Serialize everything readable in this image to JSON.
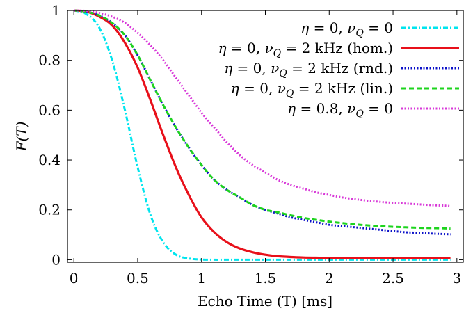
{
  "chart_data": {
    "type": "line",
    "xlabel": "Echo Time (T) [ms]",
    "ylabel": "F(T)",
    "xlim": [
      -0.05,
      3.05
    ],
    "ylim": [
      -0.01,
      1.0
    ],
    "xticks": [
      0,
      0.5,
      1,
      1.5,
      2,
      2.5,
      3
    ],
    "xtick_labels": [
      "0",
      "0.5",
      "1",
      "1.5",
      "2",
      "2.5",
      "3"
    ],
    "yticks": [
      0,
      0.2,
      0.4,
      0.6,
      0.8,
      1
    ],
    "ytick_labels": [
      "0",
      "0.2",
      "0.4",
      "0.6",
      "0.8",
      "1"
    ],
    "grid": false,
    "legend_position": "top-right",
    "x": [
      0,
      0.1,
      0.2,
      0.3,
      0.4,
      0.5,
      0.6,
      0.7,
      0.8,
      0.9,
      1.0,
      1.1,
      1.2,
      1.3,
      1.4,
      1.5,
      1.6,
      1.7,
      1.8,
      1.9,
      2.0,
      2.1,
      2.2,
      2.3,
      2.4,
      2.5,
      2.6,
      2.7,
      2.8,
      2.9,
      2.95
    ],
    "series": [
      {
        "name_parts": [
          "η = 0, ",
          "ν",
          "Q",
          " = 0"
        ],
        "color": "#00e5ee",
        "dash": "dashdot",
        "values": [
          1.0,
          0.985,
          0.93,
          0.8,
          0.6,
          0.37,
          0.18,
          0.07,
          0.02,
          0.005,
          0.001,
          0,
          0,
          0,
          0,
          0,
          0,
          0,
          0,
          0,
          0,
          0,
          0,
          0,
          0,
          0,
          0,
          0,
          0,
          0,
          0
        ]
      },
      {
        "name_parts": [
          "η = 0, ",
          "ν",
          "Q",
          " = 2 kHz (hom.)"
        ],
        "color": "#e8101a",
        "dash": "solid",
        "values": [
          1.0,
          0.995,
          0.975,
          0.94,
          0.87,
          0.77,
          0.64,
          0.5,
          0.37,
          0.26,
          0.17,
          0.11,
          0.07,
          0.045,
          0.03,
          0.02,
          0.014,
          0.011,
          0.009,
          0.008,
          0.007,
          0.007,
          0.006,
          0.006,
          0.006,
          0.006,
          0.006,
          0.006,
          0.006,
          0.006,
          0.006
        ]
      },
      {
        "name_parts": [
          "η = 0, ",
          "ν",
          "Q",
          " = 2 kHz (rnd.)"
        ],
        "color": "#0a10c8",
        "dash": "dotted",
        "values": [
          1.0,
          0.995,
          0.98,
          0.95,
          0.9,
          0.82,
          0.72,
          0.62,
          0.53,
          0.45,
          0.38,
          0.32,
          0.28,
          0.25,
          0.22,
          0.2,
          0.185,
          0.17,
          0.16,
          0.15,
          0.14,
          0.135,
          0.13,
          0.125,
          0.12,
          0.115,
          0.11,
          0.108,
          0.105,
          0.103,
          0.102
        ]
      },
      {
        "name_parts": [
          "η = 0, ",
          "ν",
          "Q",
          " = 2 kHz (lin.)"
        ],
        "color": "#1ed41e",
        "dash": "dashed",
        "values": [
          1.0,
          0.995,
          0.98,
          0.95,
          0.9,
          0.82,
          0.72,
          0.62,
          0.53,
          0.45,
          0.38,
          0.32,
          0.28,
          0.25,
          0.22,
          0.2,
          0.19,
          0.178,
          0.168,
          0.16,
          0.153,
          0.147,
          0.142,
          0.138,
          0.135,
          0.132,
          0.13,
          0.128,
          0.127,
          0.126,
          0.125
        ]
      },
      {
        "name_parts": [
          "η = 0.8, ",
          "ν",
          "Q",
          " = 0"
        ],
        "color": "#d838d8",
        "dash": "dotted",
        "values": [
          1.0,
          0.998,
          0.99,
          0.975,
          0.95,
          0.91,
          0.86,
          0.8,
          0.73,
          0.66,
          0.59,
          0.53,
          0.47,
          0.42,
          0.38,
          0.35,
          0.32,
          0.3,
          0.285,
          0.27,
          0.26,
          0.25,
          0.243,
          0.237,
          0.232,
          0.228,
          0.225,
          0.222,
          0.219,
          0.217,
          0.215
        ]
      }
    ]
  }
}
